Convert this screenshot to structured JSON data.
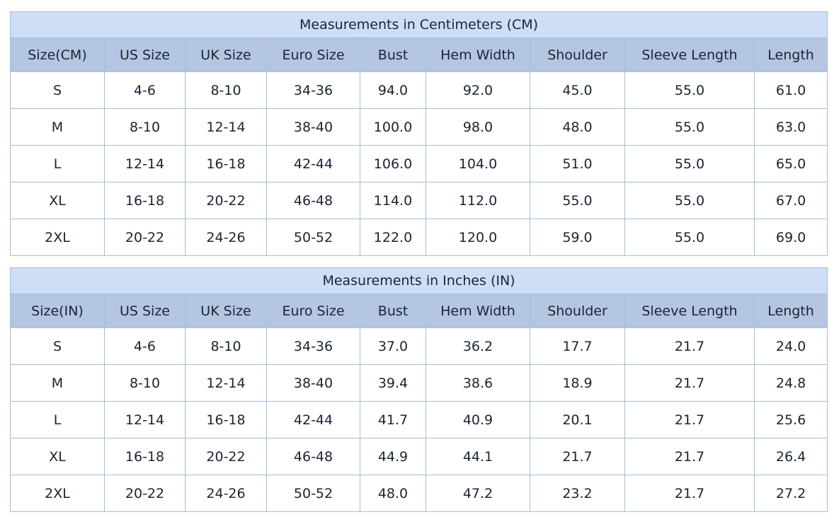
{
  "colors": {
    "title_row_bg": "#cedef6",
    "header_row_bg": "#b5c6e2",
    "data_row_bg": "#ffffff",
    "grid_border": "#a7bcd8",
    "outer_border": "#8b9db4",
    "text": "#1a2433"
  },
  "tables": [
    {
      "title": "Measurements in Centimeters (CM)",
      "columns": [
        "Size(CM)",
        "US Size",
        "UK Size",
        "Euro Size",
        "Bust",
        "Hem Width",
        "Shoulder",
        "Sleeve Length",
        "Length"
      ],
      "rows": [
        [
          "S",
          "4-6",
          "8-10",
          "34-36",
          "94.0",
          "92.0",
          "45.0",
          "55.0",
          "61.0"
        ],
        [
          "M",
          "8-10",
          "12-14",
          "38-40",
          "100.0",
          "98.0",
          "48.0",
          "55.0",
          "63.0"
        ],
        [
          "L",
          "12-14",
          "16-18",
          "42-44",
          "106.0",
          "104.0",
          "51.0",
          "55.0",
          "65.0"
        ],
        [
          "XL",
          "16-18",
          "20-22",
          "46-48",
          "114.0",
          "112.0",
          "55.0",
          "55.0",
          "67.0"
        ],
        [
          "2XL",
          "20-22",
          "24-26",
          "50-52",
          "122.0",
          "120.0",
          "59.0",
          "55.0",
          "69.0"
        ]
      ]
    },
    {
      "title": "Measurements in Inches (IN)",
      "columns": [
        "Size(IN)",
        "US Size",
        "UK Size",
        "Euro Size",
        "Bust",
        "Hem Width",
        "Shoulder",
        "Sleeve Length",
        "Length"
      ],
      "rows": [
        [
          "S",
          "4-6",
          "8-10",
          "34-36",
          "37.0",
          "36.2",
          "17.7",
          "21.7",
          "24.0"
        ],
        [
          "M",
          "8-10",
          "12-14",
          "38-40",
          "39.4",
          "38.6",
          "18.9",
          "21.7",
          "24.8"
        ],
        [
          "L",
          "12-14",
          "16-18",
          "42-44",
          "41.7",
          "40.9",
          "20.1",
          "21.7",
          "25.6"
        ],
        [
          "XL",
          "16-18",
          "20-22",
          "46-48",
          "44.9",
          "44.1",
          "21.7",
          "21.7",
          "26.4"
        ],
        [
          "2XL",
          "20-22",
          "24-26",
          "50-52",
          "48.0",
          "47.2",
          "23.2",
          "21.7",
          "27.2"
        ]
      ]
    }
  ]
}
